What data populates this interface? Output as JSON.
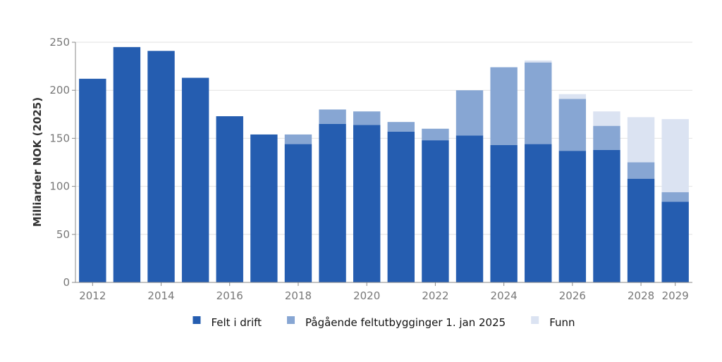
{
  "chart_data": {
    "type": "bar",
    "stacked": true,
    "title": "",
    "xlabel": "",
    "ylabel": "Milliarder NOK (2025)",
    "ylim": [
      0,
      250
    ],
    "y_ticks": [
      0,
      50,
      100,
      150,
      200,
      250
    ],
    "grid": true,
    "legend_position": "bottom",
    "categories": [
      "2012",
      "2013",
      "2014",
      "2015",
      "2016",
      "2017",
      "2018",
      "2019",
      "2020",
      "2021",
      "2022",
      "2023",
      "2024",
      "2025",
      "2026",
      "2027",
      "2028",
      "2029"
    ],
    "x_tick_labels": [
      "2012",
      "2014",
      "2016",
      "2018",
      "2020",
      "2022",
      "2024",
      "2026",
      "2028",
      "2029"
    ],
    "series": [
      {
        "name": "Felt i drift",
        "color": "#255db0",
        "values": [
          212,
          245,
          241,
          213,
          173,
          154,
          144,
          165,
          164,
          157,
          148,
          153,
          143,
          144,
          137,
          138,
          108,
          84
        ]
      },
      {
        "name": "Pågående feltutbygginger 1. jan 2025",
        "color": "#87a6d3",
        "values": [
          0,
          0,
          0,
          0,
          0,
          0,
          10,
          15,
          14,
          10,
          12,
          47,
          81,
          85,
          54,
          25,
          17,
          10
        ]
      },
      {
        "name": "Funn",
        "color": "#dbe3f2",
        "values": [
          0,
          0,
          0,
          0,
          0,
          0,
          0,
          0,
          0,
          0,
          0,
          0,
          0,
          2,
          5,
          15,
          47,
          76
        ]
      }
    ]
  }
}
